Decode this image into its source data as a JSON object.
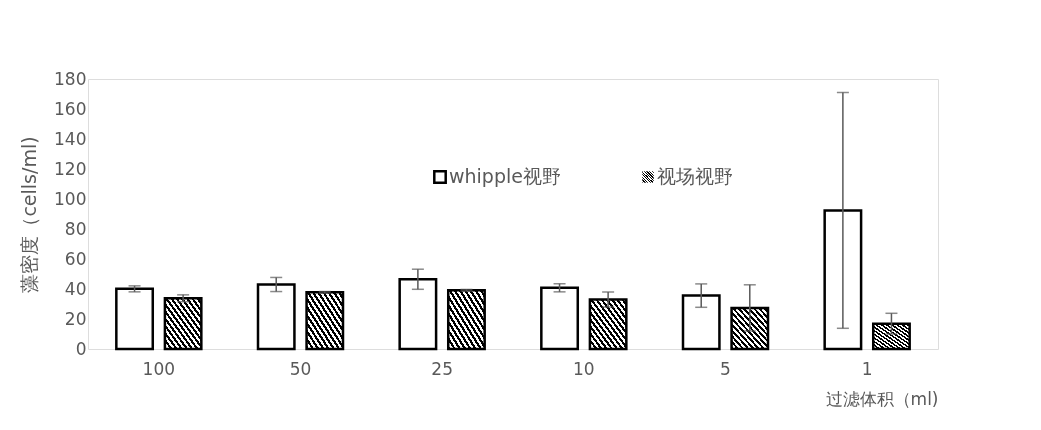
{
  "chart_data": {
    "type": "bar",
    "xlabel": "过滤体积（ml)",
    "ylabel": "藻密度（cells/ml)",
    "categories": [
      "100",
      "50",
      "25",
      "10",
      "5",
      "1"
    ],
    "series": [
      {
        "name": "whipple视野",
        "color": "#ffffff",
        "values": [
          40.1,
          43,
          46.5,
          40.8,
          35.6,
          92.4
        ],
        "errors": [
          2,
          4.7,
          6.7,
          2.7,
          7.8,
          78.6
        ]
      },
      {
        "name": "视场视野",
        "color": "#000000",
        "values": [
          33.8,
          37.8,
          39.2,
          33,
          27.4,
          16.9
        ],
        "errors": [
          2.3,
          0.5,
          0.5,
          5,
          15.4,
          6.9
        ]
      }
    ],
    "ylim": [
      0,
      180
    ],
    "yticks": [
      0,
      20,
      40,
      60,
      80,
      100,
      120,
      140,
      160,
      180
    ],
    "grid": false,
    "legend": "top"
  }
}
